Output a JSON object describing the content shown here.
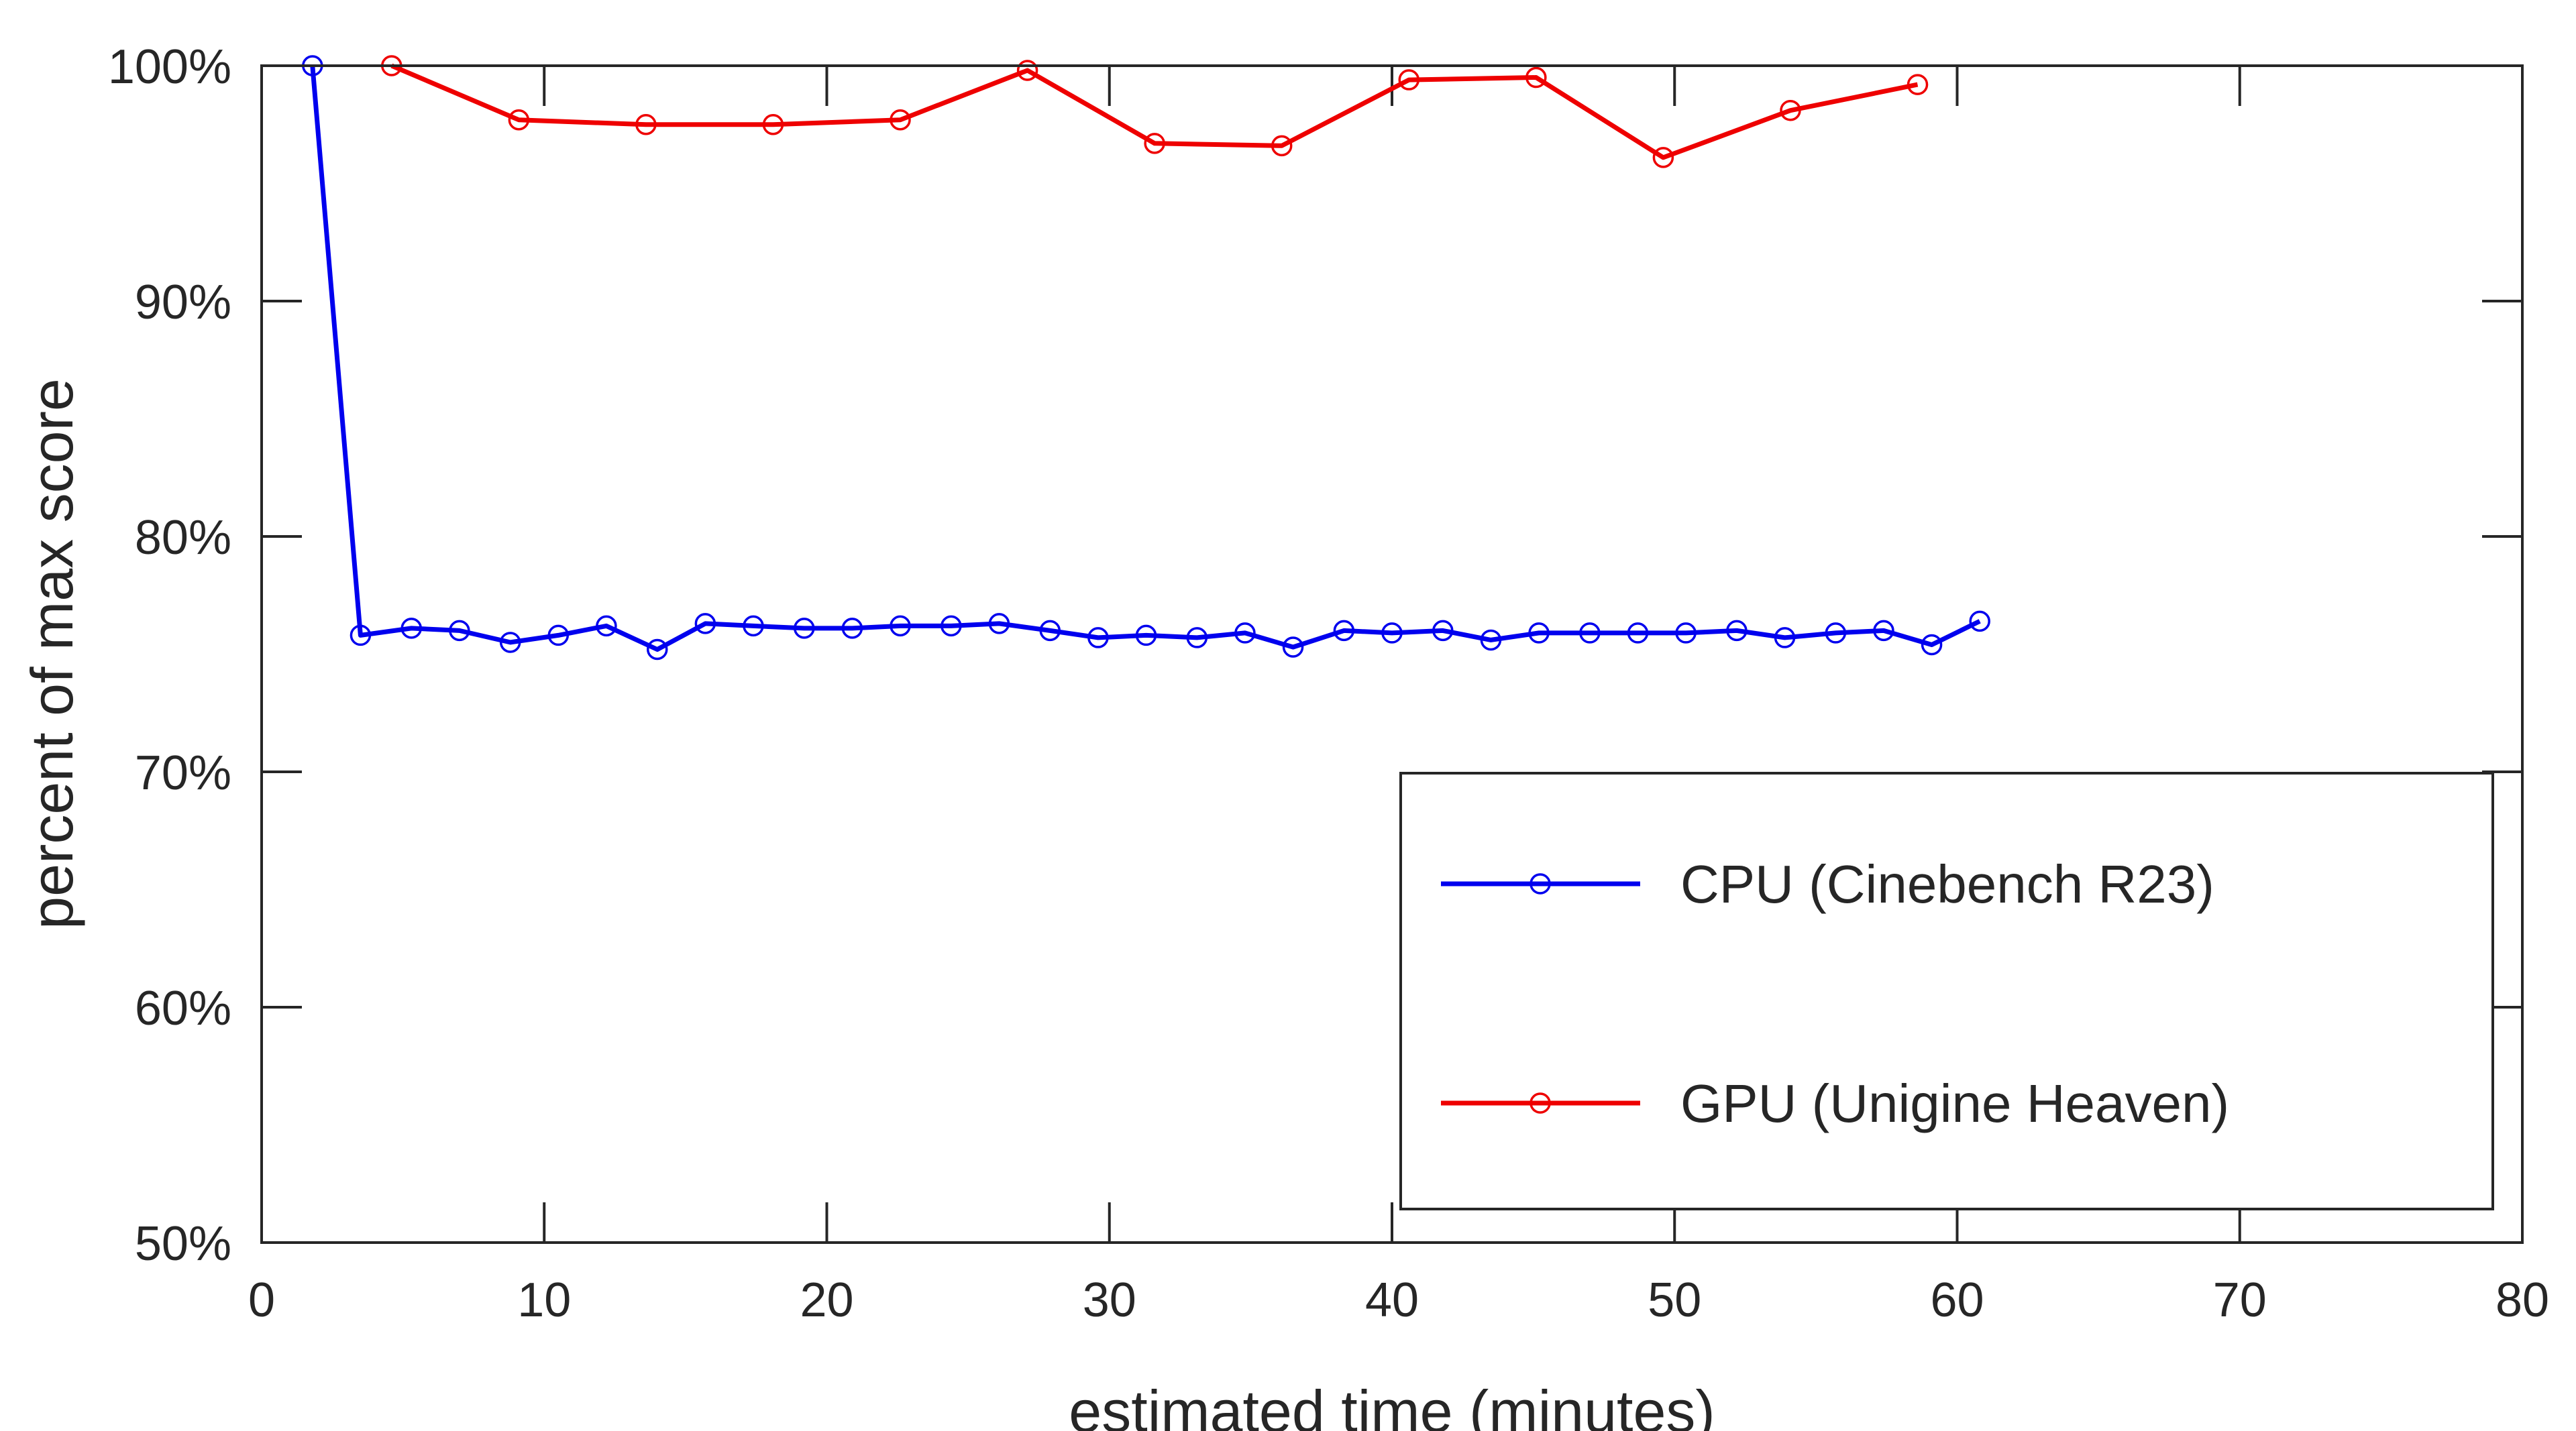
{
  "chart_data": {
    "type": "line",
    "title": "",
    "xlabel": "estimated time (minutes)",
    "ylabel": "percent of max score",
    "xlim": [
      0,
      80
    ],
    "ylim": [
      50,
      100
    ],
    "xticks": [
      0,
      10,
      20,
      30,
      40,
      50,
      60,
      70,
      80
    ],
    "xtick_labels": [
      "0",
      "10",
      "20",
      "30",
      "40",
      "50",
      "60",
      "70",
      "80"
    ],
    "yticks": [
      50,
      60,
      70,
      80,
      90,
      100
    ],
    "ytick_labels": [
      "50%",
      "60%",
      "70%",
      "80%",
      "90%",
      "100%"
    ],
    "grid": false,
    "legend_position": "lower-right",
    "series": [
      {
        "name": "CPU (Cinebench R23)",
        "color": "#0000ee",
        "marker": "circle",
        "x": [
          1.8,
          3.5,
          5.3,
          7.0,
          8.8,
          10.5,
          12.2,
          14.0,
          15.7,
          17.4,
          19.2,
          20.9,
          22.6,
          24.4,
          26.1,
          27.9,
          29.6,
          31.3,
          33.1,
          34.8,
          36.5,
          38.3,
          40.0,
          41.8,
          43.5,
          45.2,
          47.0,
          48.7,
          50.4,
          52.2,
          53.9,
          55.7,
          57.4,
          59.1,
          60.8
        ],
        "values": [
          100.0,
          75.8,
          76.1,
          76.0,
          75.5,
          75.8,
          76.2,
          75.2,
          76.3,
          76.2,
          76.1,
          76.1,
          76.2,
          76.2,
          76.3,
          76.0,
          75.7,
          75.8,
          75.7,
          75.9,
          75.3,
          76.0,
          75.9,
          76.0,
          75.6,
          75.9,
          75.9,
          75.9,
          75.9,
          76.0,
          75.7,
          75.9,
          76.0,
          75.4,
          76.4
        ]
      },
      {
        "name": "GPU (Unigine Heaven)",
        "color": "#ee0000",
        "marker": "circle",
        "x": [
          4.6,
          9.1,
          13.6,
          18.1,
          22.6,
          27.1,
          31.6,
          36.1,
          40.6,
          45.1,
          49.6,
          54.1,
          58.6
        ],
        "values": [
          100.0,
          97.7,
          97.5,
          97.5,
          97.7,
          99.8,
          96.7,
          96.6,
          99.4,
          99.5,
          96.1,
          98.1,
          99.2
        ]
      }
    ]
  }
}
